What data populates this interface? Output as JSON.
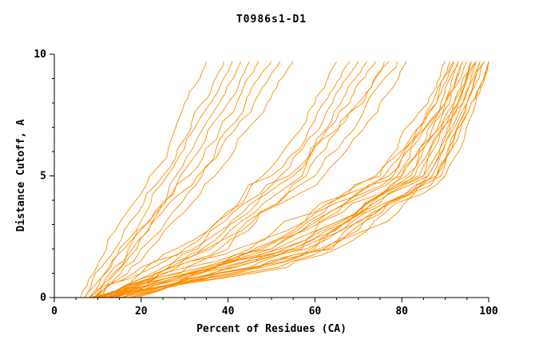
{
  "chart_data": {
    "type": "line",
    "title": "T0986s1-D1",
    "xlabel": "Percent of Residues (CA)",
    "ylabel": "Distance Cutoff, A",
    "xlim": [
      0,
      100
    ],
    "ylim": [
      0,
      10
    ],
    "x_ticks": [
      0,
      20,
      40,
      60,
      80,
      100
    ],
    "y_ticks": [
      0,
      5,
      10
    ],
    "x_minor_step": 5,
    "y_minor_step": 1,
    "grid": false,
    "legend": "none",
    "line_color": "#ff8c00",
    "y_anchors": [
      0,
      2,
      5,
      8,
      9.7
    ],
    "series": [
      {
        "x_at_anchors": [
          10,
          50,
          80,
          92,
          96
        ]
      },
      {
        "x_at_anchors": [
          12,
          55,
          85,
          94,
          98
        ]
      },
      {
        "x_at_anchors": [
          14,
          58,
          88,
          96,
          100
        ]
      },
      {
        "x_at_anchors": [
          9,
          45,
          78,
          90,
          95
        ]
      },
      {
        "x_at_anchors": [
          11,
          52,
          83,
          93,
          97
        ]
      },
      {
        "x_at_anchors": [
          13,
          56,
          86,
          95,
          99
        ]
      },
      {
        "x_at_anchors": [
          15,
          60,
          88,
          95,
          98
        ]
      },
      {
        "x_at_anchors": [
          10,
          48,
          80,
          91,
          94
        ]
      },
      {
        "x_at_anchors": [
          12,
          53,
          82,
          90,
          93
        ]
      },
      {
        "x_at_anchors": [
          16,
          62,
          87,
          94,
          97
        ]
      },
      {
        "x_at_anchors": [
          8,
          42,
          75,
          88,
          92
        ]
      },
      {
        "x_at_anchors": [
          17,
          63,
          89,
          96,
          100
        ]
      },
      {
        "x_at_anchors": [
          11,
          50,
          79,
          89,
          93
        ]
      },
      {
        "x_at_anchors": [
          13,
          57,
          84,
          92,
          96
        ]
      },
      {
        "x_at_anchors": [
          14,
          55,
          81,
          90,
          94
        ]
      },
      {
        "x_at_anchors": [
          18,
          64,
          88,
          95,
          99
        ]
      },
      {
        "x_at_anchors": [
          9,
          46,
          76,
          87,
          91
        ]
      },
      {
        "x_at_anchors": [
          15,
          59,
          85,
          93,
          97
        ]
      },
      {
        "x_at_anchors": [
          12,
          51,
          77,
          88,
          92
        ]
      },
      {
        "x_at_anchors": [
          16,
          61,
          86,
          93,
          96
        ]
      },
      {
        "x_at_anchors": [
          10,
          47,
          74,
          86,
          90
        ]
      },
      {
        "x_at_anchors": [
          19,
          65,
          90,
          97,
          100
        ]
      },
      {
        "x_at_anchors": [
          8,
          30,
          50,
          62,
          68
        ]
      },
      {
        "x_at_anchors": [
          10,
          33,
          54,
          68,
          74
        ]
      },
      {
        "x_at_anchors": [
          12,
          36,
          57,
          70,
          77
        ]
      },
      {
        "x_at_anchors": [
          9,
          28,
          48,
          60,
          65
        ]
      },
      {
        "x_at_anchors": [
          11,
          34,
          55,
          66,
          72
        ]
      },
      {
        "x_at_anchors": [
          13,
          38,
          60,
          72,
          79
        ]
      },
      {
        "x_at_anchors": [
          10,
          32,
          52,
          64,
          70
        ]
      },
      {
        "x_at_anchors": [
          14,
          40,
          62,
          75,
          81
        ]
      },
      {
        "x_at_anchors": [
          12,
          35,
          58,
          71,
          76
        ]
      },
      {
        "x_at_anchors": [
          6,
          12,
          22,
          30,
          35
        ]
      },
      {
        "x_at_anchors": [
          7,
          14,
          25,
          34,
          39
        ]
      },
      {
        "x_at_anchors": [
          8,
          16,
          28,
          38,
          43
        ]
      },
      {
        "x_at_anchors": [
          7,
          15,
          26,
          36,
          41
        ]
      },
      {
        "x_at_anchors": [
          9,
          18,
          31,
          42,
          47
        ]
      },
      {
        "x_at_anchors": [
          10,
          20,
          34,
          46,
          52
        ]
      },
      {
        "x_at_anchors": [
          8,
          17,
          29,
          40,
          45
        ]
      },
      {
        "x_at_anchors": [
          11,
          22,
          37,
          49,
          55
        ]
      },
      {
        "x_at_anchors": [
          9,
          19,
          33,
          44,
          50
        ]
      }
    ]
  }
}
